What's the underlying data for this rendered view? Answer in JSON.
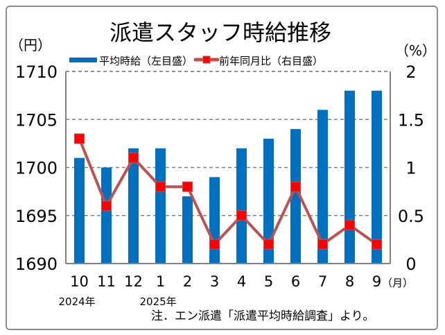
{
  "chart_data": {
    "type": "bar+line",
    "title": "派遣スタッフ時給推移",
    "left_unit": "（円）",
    "right_unit": "（%）",
    "x_unit": "（月）",
    "categories": [
      "10",
      "11",
      "12",
      "1",
      "2",
      "3",
      "4",
      "5",
      "6",
      "7",
      "8",
      "9"
    ],
    "year_labels": [
      {
        "index": 0,
        "label": "2024年"
      },
      {
        "index": 3,
        "label": "2025年"
      }
    ],
    "left_axis": {
      "min": 1690,
      "max": 1710,
      "ticks": [
        "1690",
        "1695",
        "1700",
        "1705",
        "1710"
      ]
    },
    "right_axis": {
      "min": 0,
      "max": 2,
      "ticks": [
        "0",
        "0.5",
        "1",
        "1.5",
        "2"
      ]
    },
    "grid": true,
    "legend_placement": "top",
    "series": [
      {
        "name": "平均時給（左目盛）",
        "type": "bar",
        "axis": "left",
        "color": "#0070c0",
        "values": [
          1701,
          1700,
          1702,
          1702,
          1697,
          1699,
          1702,
          1703,
          1704,
          1706,
          1708,
          1708
        ]
      },
      {
        "name": "前年同月比（右目盛）",
        "type": "line",
        "axis": "right",
        "color": "#c0504d",
        "marker_color": "#ff0000",
        "values": [
          1.3,
          0.6,
          1.1,
          0.8,
          0.8,
          0.2,
          0.5,
          0.2,
          0.8,
          0.2,
          0.4,
          0.2
        ]
      }
    ],
    "note": "注．エン派遣「派遣平均時給調査」より。"
  }
}
